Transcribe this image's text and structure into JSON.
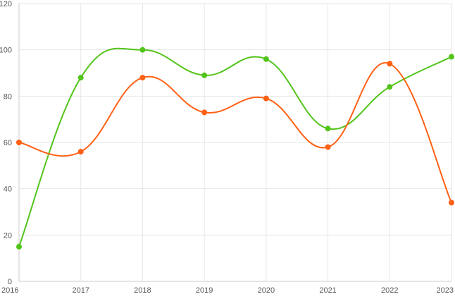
{
  "chart_data": {
    "type": "line",
    "smooth": true,
    "categories": [
      "2016",
      "2017",
      "2018",
      "2019",
      "2020",
      "2021",
      "2022",
      "2023"
    ],
    "ylim": [
      0,
      120
    ],
    "yticks": [
      0,
      20,
      40,
      60,
      80,
      100,
      120
    ],
    "grid": true,
    "legend": "none",
    "series": [
      {
        "color": "#52c41a",
        "values": [
          15,
          88,
          100,
          89,
          96,
          66,
          84,
          97
        ]
      },
      {
        "color": "#ff6014",
        "values": [
          60,
          56,
          88,
          73,
          79,
          58,
          94,
          34
        ]
      }
    ]
  }
}
